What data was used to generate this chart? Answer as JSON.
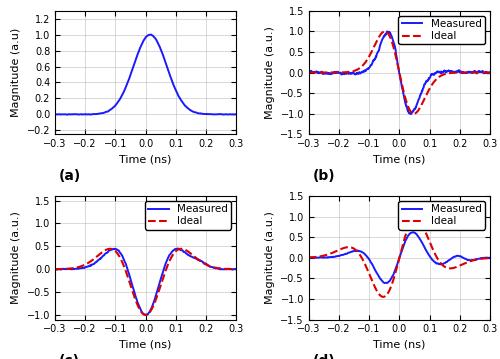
{
  "xlim": [
    -0.3,
    0.3
  ],
  "time_range": [
    -0.4,
    0.4
  ],
  "num_points": 3000,
  "ylim_a": [
    -0.25,
    1.3
  ],
  "ylim_bcd": [
    -1.5,
    1.5
  ],
  "yticks_a": [
    -0.2,
    0.0,
    0.2,
    0.4,
    0.6,
    0.8,
    1.0,
    1.2
  ],
  "yticks_bcd": [
    -1.5,
    -1.0,
    -0.5,
    0.0,
    0.5,
    1.0,
    1.5
  ],
  "yticks_c": [
    -1.0,
    -0.5,
    0.0,
    0.5,
    1.0,
    1.5
  ],
  "xticks": [
    -0.3,
    -0.2,
    -0.1,
    0.0,
    0.1,
    0.2,
    0.3
  ],
  "xlabel": "Time (ns)",
  "ylabel_a": "Magnitude (a.u)",
  "ylabel": "Magnitude (a.u.)",
  "label_a": "(a)",
  "measured_color": "#1a1aff",
  "ideal_color": "#DD0000",
  "measured_lw": 1.4,
  "ideal_lw": 1.5,
  "grid_color": "#BBBBBB",
  "grid_alpha": 0.8,
  "background_color": "#FFFFFF",
  "legend_loc": "upper right",
  "legend_fontsize": 7.5,
  "tick_labelsize": 7,
  "axis_labelsize": 8,
  "panel_label_fontsize": 10,
  "sigma_a": 0.055,
  "sigma_b_ideal": 0.048,
  "sigma_c_ideal": 0.068,
  "sigma_d_ideal": 0.072,
  "sigma_b_meas": 0.038,
  "sigma_c_meas": 0.06,
  "sigma_d_meas": 0.06
}
